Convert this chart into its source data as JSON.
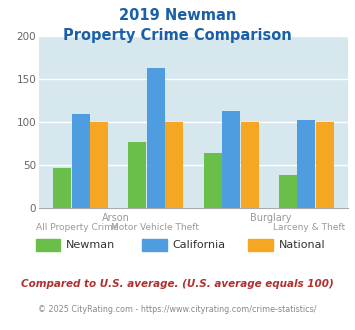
{
  "title_line1": "2019 Newman",
  "title_line2": "Property Crime Comparison",
  "newman_values": [
    47,
    77,
    64,
    38
  ],
  "california_values": [
    110,
    163,
    113,
    103
  ],
  "national_values": [
    100,
    100,
    100,
    100
  ],
  "newman_color": "#6abf4b",
  "california_color": "#4d9de0",
  "national_color": "#f5a623",
  "bg_color": "#d6e8ee",
  "ylim": [
    0,
    200
  ],
  "yticks": [
    0,
    50,
    100,
    150,
    200
  ],
  "top_xlabels": [
    "",
    "Arson",
    "",
    "Burglary"
  ],
  "bottom_xlabels": [
    "All Property Crime",
    "Motor Vehicle Theft",
    "",
    "Larceny & Theft"
  ],
  "footnote1": "Compared to U.S. average. (U.S. average equals 100)",
  "footnote2": "© 2025 CityRating.com - https://www.cityrating.com/crime-statistics/",
  "title_color": "#1a5fa8",
  "footnote1_color": "#b03030",
  "footnote2_color": "#888888",
  "xlabel_color": "#999999",
  "legend_labels": [
    "Newman",
    "California",
    "National"
  ]
}
